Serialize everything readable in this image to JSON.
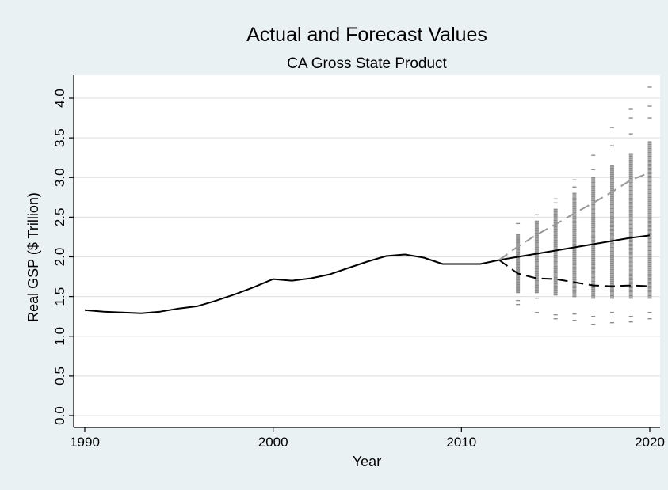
{
  "chart_data": {
    "type": "line",
    "title": "Actual and Forecast Values",
    "subtitle": "CA Gross State Product",
    "xlabel": "Year",
    "ylabel": "Real GSP ($ Trillion)",
    "xlim": [
      1990,
      2020
    ],
    "ylim": [
      0,
      4.0
    ],
    "x_ticks": [
      1990,
      2000,
      2010,
      2020
    ],
    "y_ticks": [
      0.0,
      0.5,
      1.0,
      1.5,
      2.0,
      2.5,
      3.0,
      3.5,
      4.0
    ],
    "y_tick_labels": [
      "0.0",
      "0.5",
      "1.0",
      "1.5",
      "2.0",
      "2.5",
      "3.0",
      "3.5",
      "4.0"
    ],
    "grid": true,
    "legend": "none",
    "series": [
      {
        "style": "solid",
        "color": "#000000",
        "x": [
          1990,
          1991,
          1992,
          1993,
          1994,
          1995,
          1996,
          1997,
          1998,
          1999,
          2000,
          2001,
          2002,
          2003,
          2004,
          2005,
          2006,
          2007,
          2008,
          2009,
          2010,
          2011,
          2012,
          2013,
          2014,
          2015,
          2016,
          2017,
          2018,
          2019,
          2020
        ],
        "y": [
          1.33,
          1.31,
          1.3,
          1.29,
          1.31,
          1.35,
          1.38,
          1.45,
          1.53,
          1.62,
          1.72,
          1.7,
          1.73,
          1.78,
          1.86,
          1.94,
          2.01,
          2.03,
          1.99,
          1.91,
          1.91,
          1.91,
          1.96,
          2.0,
          2.04,
          2.08,
          2.12,
          2.16,
          2.2,
          2.24,
          2.27
        ]
      },
      {
        "style": "dashed",
        "color": "#999999",
        "x": [
          2012,
          2013,
          2014,
          2015,
          2016,
          2017,
          2018,
          2019,
          2020
        ],
        "y": [
          1.96,
          2.13,
          2.28,
          2.41,
          2.55,
          2.68,
          2.82,
          2.97,
          3.06
        ]
      },
      {
        "style": "dashed",
        "color": "#000000",
        "x": [
          2012,
          2013,
          2014,
          2015,
          2016,
          2017,
          2018,
          2019,
          2020
        ],
        "y": [
          1.96,
          1.79,
          1.73,
          1.72,
          1.68,
          1.64,
          1.63,
          1.64,
          1.63
        ]
      }
    ],
    "simulations": {
      "color": "#8c8c8c",
      "x": [
        2013,
        2014,
        2015,
        2016,
        2017,
        2018,
        2019,
        2020
      ],
      "dense_low": [
        1.55,
        1.55,
        1.52,
        1.5,
        1.48,
        1.48,
        1.48,
        1.48
      ],
      "dense_high": [
        2.28,
        2.45,
        2.6,
        2.8,
        3.0,
        3.15,
        3.3,
        3.45
      ],
      "outliers": [
        [
          2.42,
          1.45,
          1.4
        ],
        [
          2.53,
          1.3,
          1.48
        ],
        [
          2.73,
          1.22,
          1.27,
          2.68
        ],
        [
          2.97,
          1.2,
          1.28,
          2.88
        ],
        [
          3.28,
          1.15,
          1.25,
          3.1
        ],
        [
          3.63,
          1.17,
          1.3,
          3.4
        ],
        [
          3.86,
          1.18,
          1.25,
          3.55,
          3.75
        ],
        [
          4.14,
          3.9,
          3.75,
          1.22,
          1.3
        ]
      ]
    }
  }
}
